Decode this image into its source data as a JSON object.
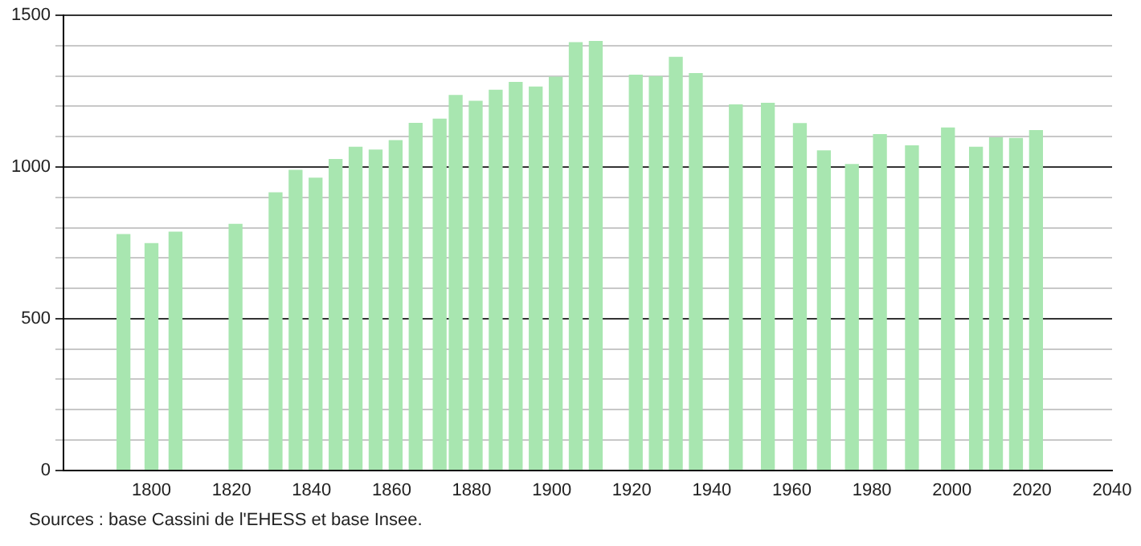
{
  "chart_data": {
    "type": "bar",
    "x": [
      1793,
      1800,
      1806,
      1821,
      1831,
      1836,
      1841,
      1846,
      1851,
      1856,
      1861,
      1866,
      1872,
      1876,
      1881,
      1886,
      1891,
      1896,
      1901,
      1906,
      1911,
      1921,
      1926,
      1931,
      1936,
      1946,
      1954,
      1962,
      1968,
      1975,
      1982,
      1990,
      1999,
      2006,
      2011,
      2016,
      2021
    ],
    "values": [
      777,
      747,
      785,
      811,
      915,
      989,
      963,
      1025,
      1065,
      1056,
      1087,
      1144,
      1158,
      1236,
      1217,
      1253,
      1279,
      1264,
      1296,
      1410,
      1414,
      1303,
      1298,
      1362,
      1308,
      1205,
      1210,
      1143,
      1053,
      1008,
      1107,
      1070,
      1129,
      1065,
      1096,
      1094,
      1120
    ],
    "color": "#a8e6b0",
    "xlim": [
      1778,
      2040
    ],
    "xticks": [
      1800,
      1820,
      1840,
      1860,
      1880,
      1900,
      1920,
      1940,
      1960,
      1980,
      2000,
      2020,
      2040
    ],
    "ylim": [
      0,
      1500
    ],
    "yticks": [
      0,
      {
        "value": 100,
        "label": null
      },
      {
        "value": 200,
        "label": null
      },
      {
        "value": 300,
        "label": null
      },
      {
        "value": 400,
        "label": null
      },
      500,
      {
        "value": 600,
        "label": null
      },
      {
        "value": 700,
        "label": null
      },
      {
        "value": 800,
        "label": null
      },
      {
        "value": 900,
        "label": null
      },
      1000,
      {
        "value": 1100,
        "label": null
      },
      {
        "value": 1200,
        "label": null
      },
      {
        "value": 1300,
        "label": null
      },
      {
        "value": 1400,
        "label": null
      },
      1500
    ],
    "grid": "y",
    "annotations": [
      "Sources : base Cassini de l'EHESS et base Insee."
    ]
  }
}
